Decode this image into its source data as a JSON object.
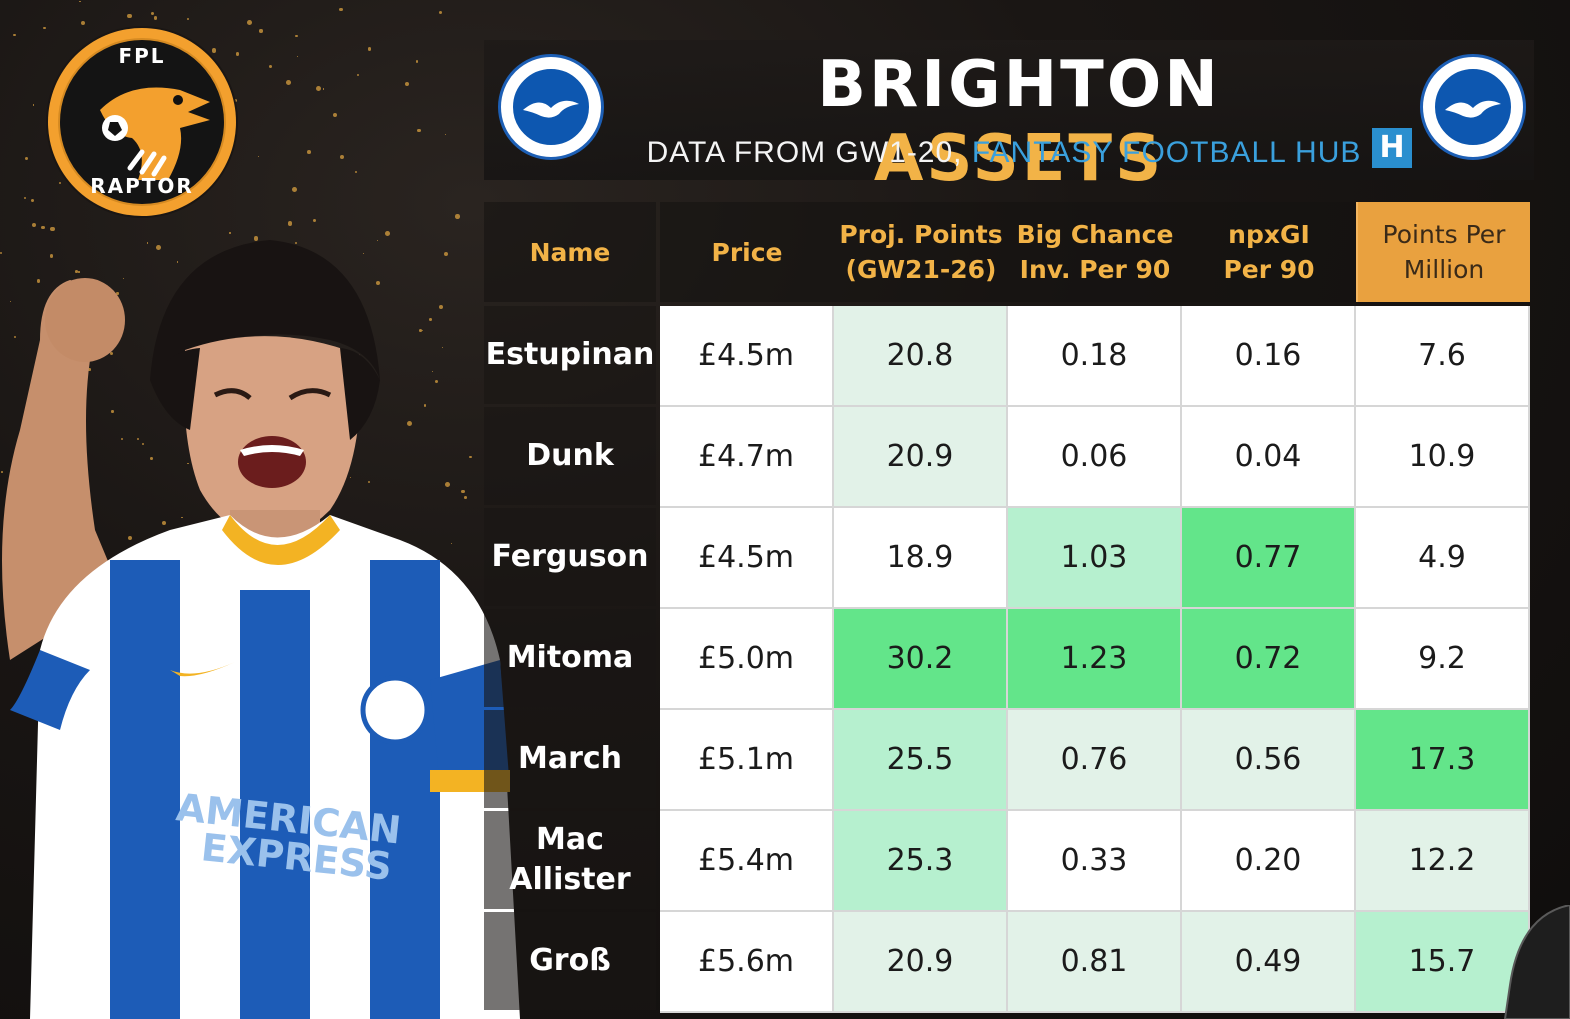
{
  "logo": {
    "top_text": "FPL",
    "bottom_text": "RAPTOR"
  },
  "header": {
    "title_word1": "BRIGHTON",
    "title_word2": "ASSETS",
    "subtitle_part1": "DATA FROM GW1-20, ",
    "subtitle_part2": "FANTASY FOOTBALL HUB",
    "hub_icon_letter": "H"
  },
  "colors": {
    "accent_gold": "#f2b347",
    "hub_blue": "#3aa0dd",
    "white_cell": "#ffffff",
    "green_light": "#e2f2e8",
    "green_mid": "#b6f0cf",
    "green_strong": "#63e58a"
  },
  "table": {
    "columns": [
      "Name",
      "Price",
      "Proj. Points\n(GW21-26)",
      "Big Chance\nInv. Per 90",
      "npxGI\nPer 90",
      "Points Per\nMillion"
    ],
    "rows": [
      {
        "name": "Estupinan",
        "price": "£4.5m",
        "proj": "20.8",
        "bci": "0.18",
        "npxgi": "0.16",
        "ppm": "7.6"
      },
      {
        "name": "Dunk",
        "price": "£4.7m",
        "proj": "20.9",
        "bci": "0.06",
        "npxgi": "0.04",
        "ppm": "10.9"
      },
      {
        "name": "Ferguson",
        "price": "£4.5m",
        "proj": "18.9",
        "bci": "1.03",
        "npxgi": "0.77",
        "ppm": "4.9"
      },
      {
        "name": "Mitoma",
        "price": "£5.0m",
        "proj": "30.2",
        "bci": "1.23",
        "npxgi": "0.72",
        "ppm": "9.2"
      },
      {
        "name": "March",
        "price": "£5.1m",
        "proj": "25.5",
        "bci": "0.76",
        "npxgi": "0.56",
        "ppm": "17.3"
      },
      {
        "name": "Mac\nAllister",
        "price": "£5.4m",
        "proj": "25.3",
        "bci": "0.33",
        "npxgi": "0.20",
        "ppm": "12.2"
      },
      {
        "name": "Groß",
        "price": "£5.6m",
        "proj": "20.9",
        "bci": "0.81",
        "npxgi": "0.49",
        "ppm": "15.7"
      }
    ]
  },
  "player_shirt_text": [
    "AMERICAN",
    "EXPRESS"
  ]
}
